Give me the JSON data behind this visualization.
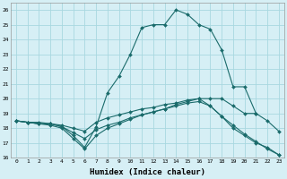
{
  "xlabel": "Humidex (Indice chaleur)",
  "bg_color": "#d6eff5",
  "grid_color": "#a8d8e0",
  "line_color": "#1a6b6b",
  "marker_color": "#1a6b6b",
  "xlim": [
    -0.5,
    23.5
  ],
  "ylim": [
    16,
    26.5
  ],
  "xticks": [
    0,
    1,
    2,
    3,
    4,
    5,
    6,
    7,
    8,
    9,
    10,
    11,
    12,
    13,
    14,
    15,
    16,
    17,
    18,
    19,
    20,
    21,
    22,
    23
  ],
  "yticks": [
    16,
    17,
    18,
    19,
    20,
    21,
    22,
    23,
    24,
    25,
    26
  ],
  "curves": [
    {
      "x": [
        0,
        1,
        2,
        3,
        4,
        5,
        6,
        7,
        8,
        9,
        10,
        11,
        12,
        13,
        14,
        15,
        16,
        17,
        18,
        19,
        20,
        21
      ],
      "y": [
        18.5,
        18.4,
        18.3,
        18.3,
        18.1,
        17.5,
        16.7,
        18.1,
        20.4,
        21.5,
        23.0,
        24.8,
        25.0,
        25.0,
        26.0,
        25.7,
        25.0,
        24.7,
        23.3,
        20.8,
        20.8,
        19.0
      ]
    },
    {
      "x": [
        0,
        1,
        2,
        3,
        4,
        5,
        6,
        7,
        8,
        9,
        10,
        11,
        12,
        13,
        14,
        15,
        16,
        17,
        18,
        19,
        20,
        21,
        22,
        23
      ],
      "y": [
        18.5,
        18.4,
        18.3,
        18.2,
        18.0,
        17.3,
        16.6,
        17.5,
        18.0,
        18.3,
        18.6,
        18.9,
        19.1,
        19.3,
        19.6,
        19.8,
        20.0,
        20.0,
        20.0,
        19.5,
        19.0,
        19.0,
        18.5,
        17.8
      ]
    },
    {
      "x": [
        0,
        1,
        2,
        3,
        4,
        5,
        6,
        7,
        8,
        9,
        10,
        11,
        12,
        13,
        14,
        15,
        16,
        17,
        18,
        19,
        20,
        21,
        22,
        23
      ],
      "y": [
        18.5,
        18.4,
        18.4,
        18.3,
        18.1,
        17.7,
        17.3,
        17.9,
        18.2,
        18.4,
        18.7,
        18.9,
        19.1,
        19.3,
        19.5,
        19.7,
        19.8,
        19.5,
        18.8,
        18.0,
        17.5,
        17.0,
        16.7,
        16.2
      ]
    },
    {
      "x": [
        0,
        1,
        2,
        3,
        4,
        5,
        6,
        7,
        8,
        9,
        10,
        11,
        12,
        13,
        14,
        15,
        16,
        17,
        18,
        19,
        20,
        21,
        22,
        23
      ],
      "y": [
        18.5,
        18.4,
        18.3,
        18.3,
        18.2,
        18.0,
        17.8,
        18.4,
        18.7,
        18.9,
        19.1,
        19.3,
        19.4,
        19.6,
        19.7,
        19.9,
        20.0,
        19.5,
        18.8,
        18.2,
        17.6,
        17.1,
        16.6,
        16.2
      ]
    }
  ]
}
